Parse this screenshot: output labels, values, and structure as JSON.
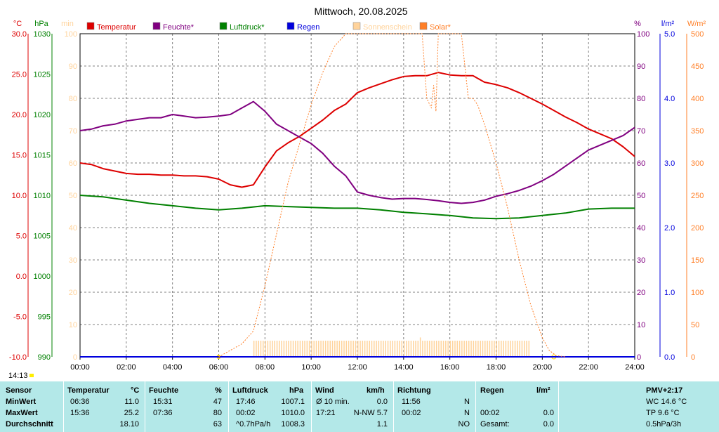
{
  "title": "Mittwoch, 20.08.2025",
  "current_time": "14:13",
  "colors": {
    "temperature": "#dd0000",
    "humidity": "#800080",
    "pressure": "#008000",
    "rain": "#0000dd",
    "sunshine": "#ffd39b",
    "solar": "#ff7f27",
    "stats_bg": "#b3e8e8"
  },
  "legend": [
    {
      "label": "Temperatur",
      "color": "#dd0000",
      "text_color": "#dd0000"
    },
    {
      "label": "Feuchte*",
      "color": "#800080",
      "text_color": "#800080"
    },
    {
      "label": "Luftdruck*",
      "color": "#008000",
      "text_color": "#008000"
    },
    {
      "label": "Regen",
      "color": "#0000dd",
      "text_color": "#0000dd"
    },
    {
      "label": "Sonnenschein",
      "color": "#ffd39b",
      "text_color": "#ffd39b"
    },
    {
      "label": "Solar*",
      "color": "#ff7f27",
      "text_color": "#ff7f27"
    }
  ],
  "axis_units": {
    "temp": "°C",
    "pressure": "hPa",
    "sun_min": "min",
    "humidity": "%",
    "rain": "l/m²",
    "solar": "W/m²"
  },
  "chart_data": {
    "type": "line",
    "title": "Mittwoch, 20.08.2025",
    "x_ticks": [
      "00:00",
      "02:00",
      "04:00",
      "06:00",
      "08:00",
      "10:00",
      "12:00",
      "14:00",
      "16:00",
      "18:00",
      "20:00",
      "22:00",
      "24:00"
    ],
    "axes": {
      "temperature": {
        "unit": "°C",
        "range": [
          -10,
          30
        ],
        "ticks": [
          "30.0",
          "25.0",
          "20.0",
          "15.0",
          "10.0",
          "5.0",
          "0.0",
          "-5.0",
          "-10.0"
        ]
      },
      "pressure": {
        "unit": "hPa",
        "range": [
          990,
          1030
        ],
        "ticks": [
          "1030",
          "1025",
          "1020",
          "1015",
          "1010",
          "1005",
          "1000",
          "995",
          "990"
        ]
      },
      "sunshine": {
        "unit": "min",
        "range": [
          0,
          100
        ],
        "ticks": [
          "100",
          "90",
          "80",
          "70",
          "60",
          "50",
          "40",
          "30",
          "20",
          "10",
          "0"
        ]
      },
      "humidity": {
        "unit": "%",
        "range": [
          0,
          100
        ],
        "ticks": [
          "100",
          "90",
          "80",
          "70",
          "60",
          "50",
          "40",
          "30",
          "20",
          "10",
          "0"
        ]
      },
      "rain": {
        "unit": "l/m²",
        "range": [
          0,
          5
        ],
        "ticks": [
          "5.0",
          "4.0",
          "3.0",
          "2.0",
          "1.0",
          "0.0"
        ]
      },
      "solar": {
        "unit": "W/m²",
        "range": [
          0,
          500
        ],
        "ticks": [
          "500",
          "450",
          "400",
          "350",
          "300",
          "250",
          "200",
          "150",
          "100",
          "50",
          "0"
        ]
      }
    },
    "series": [
      {
        "name": "Temperatur",
        "axis": "temperature",
        "x": [
          0,
          0.5,
          1,
          1.5,
          2,
          2.5,
          3,
          3.5,
          4,
          4.5,
          5,
          5.5,
          6,
          6.5,
          7,
          7.5,
          8,
          8.5,
          9,
          9.5,
          10,
          10.5,
          11,
          11.5,
          12,
          12.5,
          13,
          13.5,
          14,
          14.5,
          15,
          15.5,
          16,
          16.5,
          17,
          17.5,
          18,
          18.5,
          19,
          19.5,
          20,
          20.5,
          21,
          21.5,
          22,
          22.5,
          23,
          23.5,
          24
        ],
        "y": [
          14.0,
          13.8,
          13.3,
          13.0,
          12.7,
          12.6,
          12.6,
          12.5,
          12.5,
          12.4,
          12.4,
          12.3,
          12.0,
          11.3,
          11.0,
          11.3,
          13.5,
          15.5,
          16.5,
          17.3,
          18.3,
          19.3,
          20.5,
          21.3,
          22.7,
          23.3,
          23.8,
          24.3,
          24.7,
          24.8,
          24.8,
          25.2,
          24.9,
          24.8,
          24.8,
          24.0,
          23.7,
          23.3,
          22.7,
          22.0,
          21.3,
          20.5,
          19.7,
          19.0,
          18.2,
          17.6,
          17.0,
          16.0,
          14.8
        ]
      },
      {
        "name": "Feuchte*",
        "axis": "humidity",
        "x": [
          0,
          0.5,
          1,
          1.5,
          2,
          2.5,
          3,
          3.5,
          4,
          4.5,
          5,
          5.5,
          6,
          6.5,
          7,
          7.5,
          8,
          8.5,
          9,
          9.5,
          10,
          10.5,
          11,
          11.5,
          12,
          12.5,
          13,
          13.5,
          14,
          14.5,
          15,
          15.5,
          16,
          16.5,
          17,
          17.5,
          18,
          18.5,
          19,
          19.5,
          20,
          20.5,
          21,
          21.5,
          22,
          22.5,
          23,
          23.5,
          24
        ],
        "y": [
          70,
          70.5,
          71.5,
          72,
          73,
          73.5,
          74,
          74,
          75,
          74.5,
          74,
          74.2,
          74.5,
          75,
          77,
          79,
          76,
          72,
          70,
          68,
          66,
          63,
          59,
          56,
          51,
          50,
          49.3,
          48.8,
          49,
          49,
          48.7,
          48.3,
          47.8,
          47.5,
          47.8,
          48.5,
          49.7,
          50.5,
          51.5,
          52.8,
          54.5,
          56.5,
          59,
          61.5,
          64,
          65.5,
          67,
          68.5,
          71
        ]
      },
      {
        "name": "Luftdruck*",
        "axis": "pressure",
        "x": [
          0,
          1,
          2,
          3,
          4,
          5,
          6,
          7,
          8,
          9,
          10,
          11,
          12,
          13,
          14,
          15,
          16,
          17,
          18,
          19,
          20,
          21,
          22,
          23,
          24
        ],
        "y": [
          1010.0,
          1009.8,
          1009.4,
          1009.0,
          1008.7,
          1008.4,
          1008.2,
          1008.4,
          1008.7,
          1008.6,
          1008.5,
          1008.4,
          1008.4,
          1008.2,
          1007.9,
          1007.7,
          1007.5,
          1007.2,
          1007.1,
          1007.2,
          1007.5,
          1007.8,
          1008.3,
          1008.4,
          1008.4
        ]
      },
      {
        "name": "Solar*",
        "axis": "solar",
        "x": [
          6,
          6.5,
          7,
          7.5,
          8,
          8.5,
          9,
          9.5,
          10,
          10.5,
          11,
          11.5,
          12,
          13,
          14,
          14.8,
          15,
          15.2,
          15.3,
          15.4,
          15.5,
          16,
          16.5,
          16.8,
          17,
          17.2,
          17.5,
          18,
          18.5,
          19,
          19.5,
          20,
          20.3,
          20.6,
          21
        ],
        "y": [
          0,
          10,
          20,
          40,
          110,
          190,
          270,
          330,
          390,
          440,
          480,
          520,
          560,
          600,
          620,
          520,
          400,
          385,
          420,
          380,
          500,
          560,
          520,
          400,
          400,
          390,
          360,
          300,
          230,
          150,
          80,
          30,
          10,
          2,
          0
        ]
      }
    ],
    "sunshine_bars": {
      "x_start": 7.5,
      "x_end": 19.5,
      "value_min": 5,
      "peak_at": 14.7,
      "peak_value": 6
    },
    "rain": {
      "value": 0.0
    }
  },
  "stats": {
    "headers": {
      "sensor": "Sensor",
      "temp": "Temperatur",
      "temp_unit": "°C",
      "hum": "Feuchte",
      "hum_unit": "%",
      "press": "Luftdruck",
      "press_unit": "hPa",
      "wind": "Wind",
      "wind_unit": "km/h",
      "dir": "Richtung",
      "rain": "Regen",
      "rain_unit": "l/m²",
      "pmv": "PMV+2:17"
    },
    "rows": [
      {
        "label": "MinWert",
        "temp_time": "06:36",
        "temp_val": "11.0",
        "hum_time": "15:31",
        "hum_val": "47",
        "press_time": "17:46",
        "press_val": "1007.1",
        "wind_time": "Ø 10 min.",
        "wind_val": "0.0",
        "dir_time": "11:56",
        "dir_val": "N",
        "rain_time": "",
        "rain_val": "",
        "pmv": "WC 14.6 °C"
      },
      {
        "label": "MaxWert",
        "temp_time": "15:36",
        "temp_val": "25.2",
        "hum_time": "07:36",
        "hum_val": "80",
        "press_time": "00:02",
        "press_val": "1010.0",
        "wind_time": "17:21",
        "wind_val": "N-NW 5.7",
        "dir_time": "00:02",
        "dir_val": "N",
        "rain_time": "00:02",
        "rain_val": "0.0",
        "pmv": "TP 9.6 °C"
      },
      {
        "label": "Durchschnitt",
        "temp_time": "",
        "temp_val": "18.10",
        "hum_time": "",
        "hum_val": "63",
        "press_time": "^0.7hPa/h",
        "press_val": "1008.3",
        "wind_time": "",
        "wind_val": "1.1",
        "dir_time": "",
        "dir_val": "NO",
        "rain_time": "Gesamt:",
        "rain_val": "0.0",
        "pmv": "0.5hPa/3h"
      }
    ]
  }
}
